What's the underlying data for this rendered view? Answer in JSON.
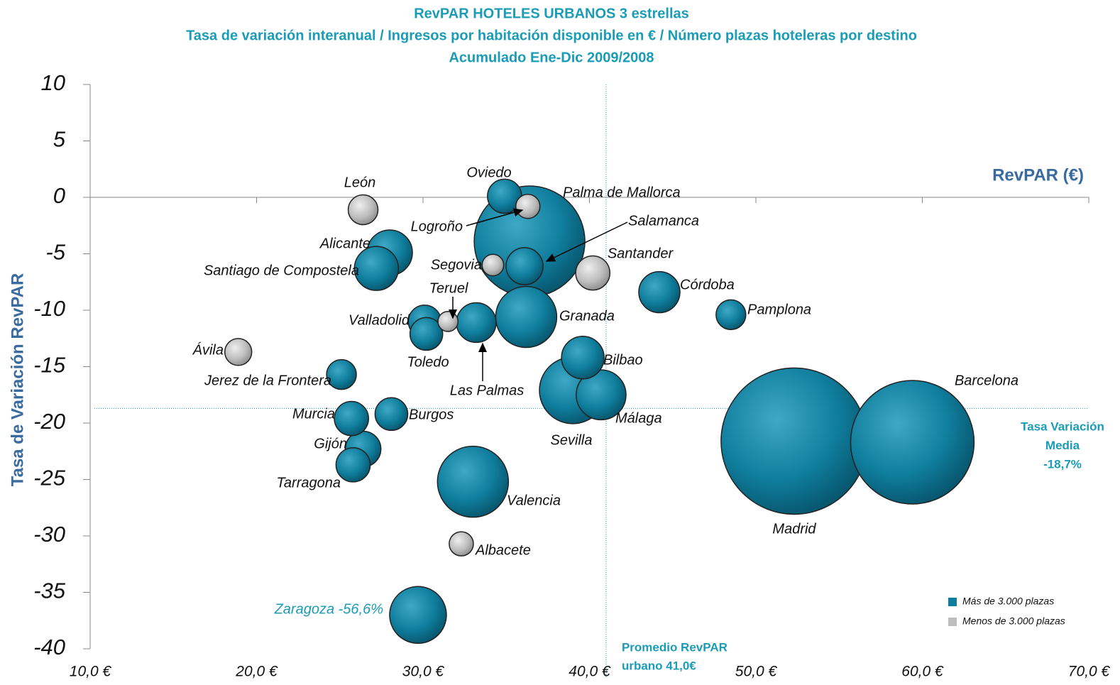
{
  "chart_data": {
    "type": "bubble",
    "title": [
      "RevPAR HOTELES URBANOS 3 estrellas",
      "Tasa de variación interanual / Ingresos por habitación disponible en € / Número plazas hoteleras por destino",
      "Acumulado Ene-Dic 2009/2008"
    ],
    "x_label": "RevPAR (€)",
    "y_label": "Tasa de Variación RevPAR",
    "xlim": [
      10,
      70
    ],
    "ylim": [
      -40,
      10
    ],
    "xticks": [
      {
        "value": 10,
        "label": "10,0 €"
      },
      {
        "value": 20,
        "label": "20,0 €"
      },
      {
        "value": 30,
        "label": "30,0 €"
      },
      {
        "value": 40,
        "label": "40,0 €"
      },
      {
        "value": 50,
        "label": "50,0 €"
      },
      {
        "value": 60,
        "label": "60,0 €"
      },
      {
        "value": 70,
        "label": "70,0 €"
      }
    ],
    "yticks": [
      10,
      5,
      0,
      -5,
      -10,
      -15,
      -20,
      -25,
      -30,
      -35,
      -40
    ],
    "legend": "bottom-right",
    "reference_lines": {
      "x": {
        "value": 41.0,
        "label": [
          "Promedio RevPAR",
          "urbano 41,0€"
        ]
      },
      "y": {
        "value": -18.7,
        "label": [
          "Tasa Variación",
          "Media",
          "-18,7%"
        ]
      }
    },
    "series": [
      {
        "name": "Más de 3.000 plazas",
        "color": "#0f7d9c",
        "labels": [
          "Oviedo",
          "Palma de Mallorca",
          "Alicante",
          "Santiago de Compostela",
          "Salamanca",
          "Córdoba",
          "Pamplona",
          "Granada",
          "Las Palmas",
          "Valladolid",
          "Toledo",
          "Bilbao",
          "Jerez de la Frontera",
          "Sevilla",
          "Málaga",
          "Burgos",
          "Murcia",
          "Gijón",
          "Tarragona",
          "Valencia",
          "Zaragoza -56,6%",
          "Madrid",
          "Barcelona"
        ],
        "x": [
          34.9,
          36.4,
          28.0,
          27.2,
          36.1,
          44.2,
          48.5,
          36.2,
          33.2,
          30.1,
          30.2,
          39.6,
          25.1,
          39.0,
          40.7,
          28.1,
          25.7,
          26.4,
          25.8,
          33.0,
          29.7,
          52.3,
          59.4
        ],
        "values": [
          0.1,
          -3.9,
          -4.9,
          -6.3,
          -6.1,
          -8.4,
          -10.4,
          -10.6,
          -11.1,
          -11.0,
          -12.1,
          -14.2,
          -15.7,
          -17.1,
          -17.5,
          -19.2,
          -19.6,
          -22.3,
          -23.7,
          -25.2,
          -37.0,
          -21.6,
          -21.7
        ],
        "sizes": [
          58,
          608,
          102,
          96,
          68,
          84,
          44,
          185,
          78,
          53,
          53,
          90,
          44,
          221,
          123,
          53,
          58,
          63,
          58,
          250,
          160,
          1061,
          757
        ]
      },
      {
        "name": "Menos de 3.000 plazas",
        "color": "#bdbdbd",
        "labels": [
          "León",
          "Logroño",
          "Segovia",
          "Santander",
          "Teruel",
          "Ávila",
          "Albacete"
        ],
        "x": [
          26.4,
          36.3,
          34.2,
          40.2,
          31.5,
          18.9,
          32.3
        ],
        "values": [
          -1.1,
          -0.8,
          -6.0,
          -6.7,
          -11.0,
          -13.7,
          -30.7
        ],
        "sizes": [
          44,
          29,
          23,
          58,
          20,
          36,
          29
        ]
      }
    ]
  }
}
